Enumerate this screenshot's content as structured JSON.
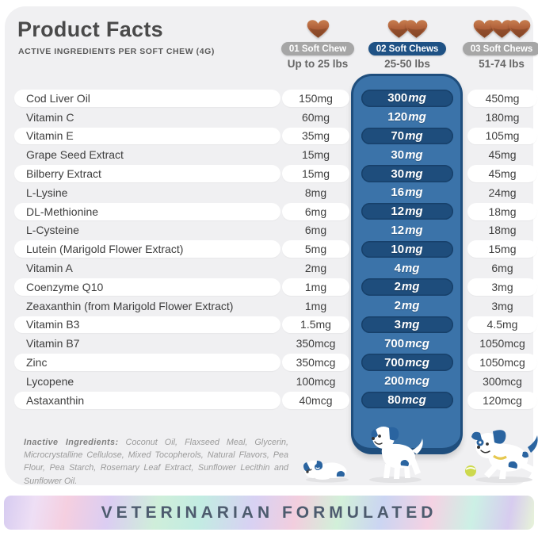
{
  "header": {
    "title": "Product Facts",
    "subtitle": "ACTIVE INGREDIENTS PER SOFT CHEW (4G)"
  },
  "serving_columns": [
    {
      "badge": "01 Soft Chew",
      "weight_range": "Up to 25 lbs",
      "chew_count": 1,
      "highlighted": false
    },
    {
      "badge": "02 Soft Chews",
      "weight_range": "25-50 lbs",
      "chew_count": 2,
      "highlighted": true
    },
    {
      "badge": "03 Soft Chews",
      "weight_range": "51-74 lbs",
      "chew_count": 3,
      "highlighted": false
    }
  ],
  "table": {
    "rows": [
      {
        "name": "Cod Liver Oil",
        "dose1": "150mg",
        "dose2_num": "300",
        "dose2_unit": "mg",
        "dose3": "450mg"
      },
      {
        "name": "Vitamin C",
        "dose1": "60mg",
        "dose2_num": "120",
        "dose2_unit": "mg",
        "dose3": "180mg"
      },
      {
        "name": "Vitamin E",
        "dose1": "35mg",
        "dose2_num": "70",
        "dose2_unit": "mg",
        "dose3": "105mg"
      },
      {
        "name": "Grape Seed Extract",
        "dose1": "15mg",
        "dose2_num": "30",
        "dose2_unit": "mg",
        "dose3": "45mg"
      },
      {
        "name": "Bilberry Extract",
        "dose1": "15mg",
        "dose2_num": "30",
        "dose2_unit": "mg",
        "dose3": "45mg"
      },
      {
        "name": "L-Lysine",
        "dose1": "8mg",
        "dose2_num": "16",
        "dose2_unit": "mg",
        "dose3": "24mg"
      },
      {
        "name": "DL-Methionine",
        "dose1": "6mg",
        "dose2_num": "12",
        "dose2_unit": "mg",
        "dose3": "18mg"
      },
      {
        "name": "L-Cysteine",
        "dose1": "6mg",
        "dose2_num": "12",
        "dose2_unit": "mg",
        "dose3": "18mg"
      },
      {
        "name": "Lutein (Marigold Flower Extract)",
        "dose1": "5mg",
        "dose2_num": "10",
        "dose2_unit": "mg",
        "dose3": "15mg"
      },
      {
        "name": "Vitamin A",
        "dose1": "2mg",
        "dose2_num": "4",
        "dose2_unit": "mg",
        "dose3": "6mg"
      },
      {
        "name": "Coenzyme Q10",
        "dose1": "1mg",
        "dose2_num": "2",
        "dose2_unit": "mg",
        "dose3": "3mg"
      },
      {
        "name": "Zeaxanthin (from Marigold Flower Extract)",
        "dose1": "1mg",
        "dose2_num": "2",
        "dose2_unit": "mg",
        "dose3": "3mg"
      },
      {
        "name": "Vitamin B3",
        "dose1": "1.5mg",
        "dose2_num": "3",
        "dose2_unit": "mg",
        "dose3": "4.5mg"
      },
      {
        "name": "Vitamin B7",
        "dose1": "350mcg",
        "dose2_num": "700",
        "dose2_unit": "mcg",
        "dose3": "1050mcg"
      },
      {
        "name": "Zinc",
        "dose1": "350mcg",
        "dose2_num": "700",
        "dose2_unit": "mcg",
        "dose3": "1050mcg"
      },
      {
        "name": "Lycopene",
        "dose1": "100mcg",
        "dose2_num": "200",
        "dose2_unit": "mcg",
        "dose3": "300mcg"
      },
      {
        "name": "Astaxanthin",
        "dose1": "40mcg",
        "dose2_num": "80",
        "dose2_unit": "mcg",
        "dose3": "120mcg"
      }
    ]
  },
  "inactive": {
    "label": "Inactive Ingredients:",
    "text": " Coconut Oil, Flaxseed Meal, Glycerin, Microcrystalline Cellulose, Mixed Tocopherols, Natural Flavors, Pea Flour, Pea Starch, Rosemary Leaf Extract, Sunflower Lecithin and Sunflower Oil."
  },
  "footer": {
    "banner_text": "VETERINARIAN FORMULATED"
  },
  "colors": {
    "card_bg": "#f0f0f2",
    "highlight_column": "#3b73a9",
    "highlight_pill": "#1e4d7c",
    "badge_gray": "#a6a6a6",
    "badge_navy": "#1f5285",
    "chew_brown": "#b0613a",
    "text_dark": "#3e3e3e"
  }
}
